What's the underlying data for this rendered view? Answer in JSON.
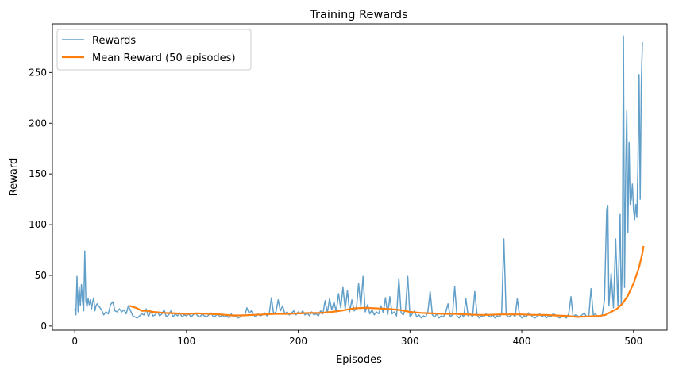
{
  "chart_data": {
    "type": "line",
    "title": "Training Rewards",
    "xlabel": "Episodes",
    "ylabel": "Reward",
    "xlim": [
      -20,
      530
    ],
    "ylim": [
      -4,
      298
    ],
    "xticks": [
      0,
      100,
      200,
      300,
      400,
      500
    ],
    "yticks": [
      0,
      50,
      100,
      150,
      200,
      250
    ],
    "grid": false,
    "legend": "top-left",
    "series": [
      {
        "name": "Rewards",
        "color": "#1f77b4",
        "opacity": 0.7,
        "width": 1.5,
        "points": [
          [
            0,
            17
          ],
          [
            1,
            11
          ],
          [
            2,
            49
          ],
          [
            3,
            14
          ],
          [
            4,
            38
          ],
          [
            5,
            20
          ],
          [
            6,
            41
          ],
          [
            7,
            24
          ],
          [
            8,
            15
          ],
          [
            9,
            74
          ],
          [
            10,
            25
          ],
          [
            11,
            19
          ],
          [
            12,
            27
          ],
          [
            13,
            21
          ],
          [
            14,
            26
          ],
          [
            15,
            17
          ],
          [
            16,
            24
          ],
          [
            17,
            28
          ],
          [
            18,
            15
          ],
          [
            19,
            20
          ],
          [
            20,
            22
          ],
          [
            22,
            19
          ],
          [
            24,
            16
          ],
          [
            26,
            11
          ],
          [
            28,
            14
          ],
          [
            30,
            12
          ],
          [
            32,
            21
          ],
          [
            34,
            24
          ],
          [
            36,
            15
          ],
          [
            38,
            14
          ],
          [
            40,
            17
          ],
          [
            42,
            14
          ],
          [
            44,
            16
          ],
          [
            46,
            12
          ],
          [
            48,
            20
          ],
          [
            50,
            15
          ],
          [
            52,
            10
          ],
          [
            54,
            9
          ],
          [
            56,
            8
          ],
          [
            58,
            10
          ],
          [
            60,
            12
          ],
          [
            62,
            11
          ],
          [
            64,
            17
          ],
          [
            66,
            9
          ],
          [
            68,
            15
          ],
          [
            70,
            10
          ],
          [
            72,
            11
          ],
          [
            74,
            14
          ],
          [
            76,
            10
          ],
          [
            78,
            12
          ],
          [
            80,
            16
          ],
          [
            82,
            9
          ],
          [
            84,
            11
          ],
          [
            86,
            15
          ],
          [
            88,
            9
          ],
          [
            90,
            12
          ],
          [
            92,
            10
          ],
          [
            94,
            13
          ],
          [
            96,
            9
          ],
          [
            98,
            11
          ],
          [
            100,
            10
          ],
          [
            102,
            12
          ],
          [
            104,
            9
          ],
          [
            106,
            11
          ],
          [
            108,
            13
          ],
          [
            110,
            10
          ],
          [
            112,
            9
          ],
          [
            114,
            12
          ],
          [
            116,
            10
          ],
          [
            118,
            9
          ],
          [
            120,
            11
          ],
          [
            122,
            13
          ],
          [
            124,
            9
          ],
          [
            126,
            10
          ],
          [
            128,
            12
          ],
          [
            130,
            9
          ],
          [
            132,
            11
          ],
          [
            134,
            9
          ],
          [
            136,
            10
          ],
          [
            138,
            8
          ],
          [
            140,
            12
          ],
          [
            142,
            9
          ],
          [
            144,
            10
          ],
          [
            146,
            8
          ],
          [
            148,
            9
          ],
          [
            150,
            11
          ],
          [
            152,
            10
          ],
          [
            154,
            18
          ],
          [
            156,
            13
          ],
          [
            158,
            15
          ],
          [
            160,
            11
          ],
          [
            162,
            9
          ],
          [
            164,
            12
          ],
          [
            166,
            10
          ],
          [
            168,
            11
          ],
          [
            170,
            13
          ],
          [
            172,
            10
          ],
          [
            174,
            12
          ],
          [
            176,
            28
          ],
          [
            178,
            12
          ],
          [
            180,
            14
          ],
          [
            182,
            26
          ],
          [
            184,
            15
          ],
          [
            186,
            20
          ],
          [
            188,
            12
          ],
          [
            190,
            14
          ],
          [
            192,
            11
          ],
          [
            194,
            13
          ],
          [
            196,
            15
          ],
          [
            198,
            11
          ],
          [
            200,
            14
          ],
          [
            202,
            12
          ],
          [
            204,
            15
          ],
          [
            206,
            11
          ],
          [
            208,
            13
          ],
          [
            210,
            10
          ],
          [
            212,
            14
          ],
          [
            214,
            11
          ],
          [
            216,
            12
          ],
          [
            218,
            10
          ],
          [
            220,
            15
          ],
          [
            222,
            12
          ],
          [
            224,
            25
          ],
          [
            226,
            13
          ],
          [
            228,
            27
          ],
          [
            230,
            16
          ],
          [
            232,
            24
          ],
          [
            234,
            14
          ],
          [
            236,
            32
          ],
          [
            238,
            18
          ],
          [
            240,
            38
          ],
          [
            242,
            17
          ],
          [
            244,
            35
          ],
          [
            246,
            14
          ],
          [
            248,
            26
          ],
          [
            250,
            15
          ],
          [
            252,
            17
          ],
          [
            254,
            42
          ],
          [
            256,
            19
          ],
          [
            258,
            49
          ],
          [
            260,
            14
          ],
          [
            262,
            21
          ],
          [
            264,
            12
          ],
          [
            266,
            16
          ],
          [
            268,
            11
          ],
          [
            270,
            14
          ],
          [
            272,
            12
          ],
          [
            274,
            20
          ],
          [
            276,
            13
          ],
          [
            278,
            28
          ],
          [
            280,
            11
          ],
          [
            282,
            29
          ],
          [
            284,
            12
          ],
          [
            286,
            14
          ],
          [
            288,
            10
          ],
          [
            290,
            47
          ],
          [
            292,
            13
          ],
          [
            294,
            11
          ],
          [
            296,
            17
          ],
          [
            298,
            49
          ],
          [
            300,
            9
          ],
          [
            302,
            12
          ],
          [
            304,
            15
          ],
          [
            306,
            9
          ],
          [
            308,
            11
          ],
          [
            310,
            8
          ],
          [
            312,
            10
          ],
          [
            314,
            9
          ],
          [
            316,
            14
          ],
          [
            318,
            34
          ],
          [
            320,
            11
          ],
          [
            322,
            9
          ],
          [
            324,
            12
          ],
          [
            326,
            8
          ],
          [
            328,
            10
          ],
          [
            330,
            9
          ],
          [
            332,
            14
          ],
          [
            334,
            22
          ],
          [
            336,
            9
          ],
          [
            338,
            11
          ],
          [
            340,
            39
          ],
          [
            342,
            10
          ],
          [
            344,
            8
          ],
          [
            346,
            12
          ],
          [
            348,
            9
          ],
          [
            350,
            27
          ],
          [
            352,
            10
          ],
          [
            354,
            12
          ],
          [
            356,
            9
          ],
          [
            358,
            34
          ],
          [
            360,
            11
          ],
          [
            362,
            8
          ],
          [
            364,
            10
          ],
          [
            366,
            9
          ],
          [
            368,
            12
          ],
          [
            370,
            10
          ],
          [
            372,
            9
          ],
          [
            374,
            11
          ],
          [
            376,
            8
          ],
          [
            378,
            10
          ],
          [
            380,
            9
          ],
          [
            382,
            12
          ],
          [
            384,
            86
          ],
          [
            386,
            11
          ],
          [
            388,
            9
          ],
          [
            390,
            10
          ],
          [
            392,
            12
          ],
          [
            394,
            9
          ],
          [
            396,
            27
          ],
          [
            398,
            11
          ],
          [
            400,
            8
          ],
          [
            402,
            10
          ],
          [
            404,
            9
          ],
          [
            406,
            13
          ],
          [
            408,
            11
          ],
          [
            410,
            9
          ],
          [
            412,
            8
          ],
          [
            414,
            10
          ],
          [
            416,
            12
          ],
          [
            418,
            9
          ],
          [
            420,
            11
          ],
          [
            422,
            8
          ],
          [
            424,
            10
          ],
          [
            426,
            9
          ],
          [
            428,
            12
          ],
          [
            430,
            11
          ],
          [
            432,
            9
          ],
          [
            434,
            8
          ],
          [
            436,
            10
          ],
          [
            438,
            9
          ],
          [
            440,
            8
          ],
          [
            442,
            12
          ],
          [
            444,
            29
          ],
          [
            446,
            9
          ],
          [
            448,
            11
          ],
          [
            450,
            10
          ],
          [
            452,
            9
          ],
          [
            454,
            11
          ],
          [
            456,
            13
          ],
          [
            458,
            9
          ],
          [
            460,
            10
          ],
          [
            462,
            37
          ],
          [
            464,
            11
          ],
          [
            466,
            12
          ],
          [
            468,
            9
          ],
          [
            470,
            10
          ],
          [
            472,
            11
          ],
          [
            474,
            26
          ],
          [
            476,
            115
          ],
          [
            477,
            119
          ],
          [
            478,
            20
          ],
          [
            480,
            52
          ],
          [
            482,
            18
          ],
          [
            484,
            86
          ],
          [
            486,
            20
          ],
          [
            488,
            110
          ],
          [
            489,
            22
          ],
          [
            490,
            60
          ],
          [
            491,
            286
          ],
          [
            492,
            38
          ],
          [
            493,
            150
          ],
          [
            494,
            212
          ],
          [
            495,
            92
          ],
          [
            496,
            181
          ],
          [
            497,
            120
          ],
          [
            498,
            125
          ],
          [
            499,
            140
          ],
          [
            500,
            115
          ],
          [
            501,
            105
          ],
          [
            502,
            120
          ],
          [
            503,
            107
          ],
          [
            504,
            160
          ],
          [
            505,
            248
          ],
          [
            506,
            125
          ],
          [
            507,
            240
          ],
          [
            508,
            280
          ]
        ]
      },
      {
        "name": "Mean Reward (50 episodes)",
        "color": "#ff7f0e",
        "opacity": 1,
        "width": 2.2,
        "points": [
          [
            49,
            20
          ],
          [
            55,
            18
          ],
          [
            60,
            15
          ],
          [
            65,
            15
          ],
          [
            70,
            14
          ],
          [
            80,
            13
          ],
          [
            90,
            12.5
          ],
          [
            100,
            12
          ],
          [
            110,
            12.5
          ],
          [
            120,
            12
          ],
          [
            130,
            11.5
          ],
          [
            140,
            10.5
          ],
          [
            150,
            10.5
          ],
          [
            160,
            11
          ],
          [
            170,
            11.5
          ],
          [
            180,
            12
          ],
          [
            190,
            12
          ],
          [
            200,
            12.5
          ],
          [
            210,
            13
          ],
          [
            220,
            13
          ],
          [
            230,
            14
          ],
          [
            240,
            15.5
          ],
          [
            250,
            17.5
          ],
          [
            260,
            18
          ],
          [
            270,
            17.5
          ],
          [
            280,
            17
          ],
          [
            290,
            16
          ],
          [
            300,
            14
          ],
          [
            310,
            13
          ],
          [
            320,
            12.5
          ],
          [
            330,
            12
          ],
          [
            340,
            12
          ],
          [
            350,
            11.5
          ],
          [
            360,
            11
          ],
          [
            370,
            11
          ],
          [
            380,
            11.5
          ],
          [
            390,
            11.5
          ],
          [
            400,
            11.5
          ],
          [
            410,
            11
          ],
          [
            420,
            11
          ],
          [
            430,
            10.5
          ],
          [
            440,
            10
          ],
          [
            450,
            9
          ],
          [
            460,
            9.5
          ],
          [
            470,
            10
          ],
          [
            475,
            11
          ],
          [
            480,
            14
          ],
          [
            485,
            17
          ],
          [
            490,
            22
          ],
          [
            495,
            30
          ],
          [
            500,
            42
          ],
          [
            505,
            58
          ],
          [
            508,
            72
          ],
          [
            509,
            79
          ]
        ]
      }
    ]
  }
}
